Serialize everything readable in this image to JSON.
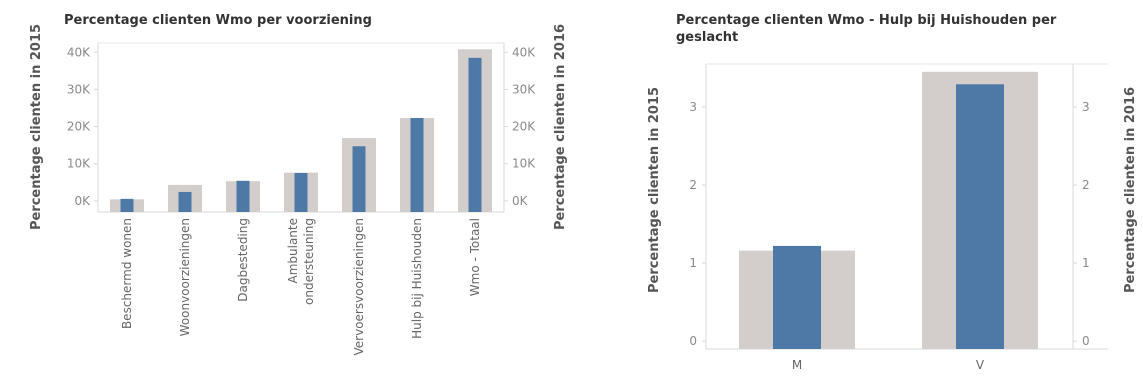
{
  "chart_data": [
    {
      "type": "bar",
      "title": "Percentage clienten Wmo per voorziening",
      "ylabel_left": "Percentage clienten in 2015",
      "ylabel_right": "Percentage clienten in 2016",
      "categories": [
        "Beschermd wonen",
        "Woonvoorzieningen",
        "Dagbesteding",
        "Ambulante ondersteuning",
        "Vervoersvoorzieningen",
        "Hulp bij Huishouden",
        "Wmo - Totaal"
      ],
      "category_lines": [
        [
          "Beschermd wonen"
        ],
        [
          "Woonvoorzieningen"
        ],
        [
          "Dagbesteding"
        ],
        [
          "Ambulante",
          "ondersteuning"
        ],
        [
          "Vervoersvoorzieningen"
        ],
        [
          "Hulp bij Huishouden"
        ],
        [
          "Wmo - Totaal"
        ]
      ],
      "series": [
        {
          "values": [
            400,
            4300,
            5300,
            7600,
            16900,
            22300,
            40800
          ],
          "color": "#d3cdcb"
        },
        {
          "values": [
            300,
            2400,
            5400,
            7500,
            14700,
            22300,
            38500
          ],
          "color": "#4e79a7"
        }
      ],
      "ylim": [
        -3000,
        42500
      ],
      "ticks": [
        0,
        10000,
        20000,
        30000,
        40000
      ],
      "tick_labels": [
        "0K",
        "10K",
        "20K",
        "30K",
        "40K"
      ],
      "grid": false
    },
    {
      "type": "bar",
      "title": "Percentage clienten Wmo -  Hulp bij Huishouden per geslacht",
      "title_lines": [
        "Percentage clienten Wmo -  Hulp bij Huishouden per",
        "geslacht"
      ],
      "ylabel_left": "Percentage clienten in 2015",
      "ylabel_right": "Percentage clienten in 2016",
      "categories": [
        "M",
        "V"
      ],
      "series": [
        {
          "values": [
            1.16,
            3.45
          ],
          "color": "#d3cdcb"
        },
        {
          "values": [
            1.22,
            3.29
          ],
          "color": "#4e79a7"
        }
      ],
      "ylim": [
        -0.1,
        3.55
      ],
      "ticks_left": [
        0,
        1,
        2,
        3
      ],
      "ticks_right": [
        0,
        1,
        2,
        3
      ],
      "grid": false
    }
  ]
}
